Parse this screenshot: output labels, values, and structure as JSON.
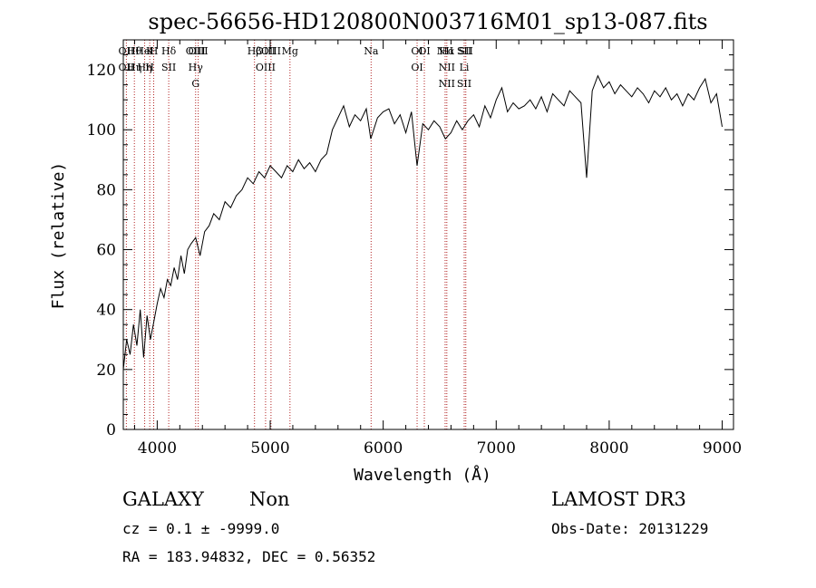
{
  "chart_data": {
    "type": "line",
    "title": "spec-56656-HD120800N003716M01_sp13-087.fits",
    "xlabel": "Wavelength (Å)",
    "ylabel": "Flux (relative)",
    "xlim": [
      3700,
      9100
    ],
    "ylim": [
      0,
      130
    ],
    "xticks": [
      4000,
      5000,
      6000,
      7000,
      8000,
      9000
    ],
    "yticks": [
      0,
      20,
      40,
      60,
      80,
      100,
      120
    ],
    "grid": false,
    "line_color": "#000000",
    "marker_color": "#b22222",
    "series": [
      {
        "x": [
          3700,
          3730,
          3760,
          3790,
          3820,
          3850,
          3880,
          3910,
          3940,
          3970,
          4000,
          4030,
          4060,
          4090,
          4120,
          4150,
          4180,
          4210,
          4240,
          4270,
          4300,
          4340,
          4380,
          4420,
          4460,
          4500,
          4550,
          4600,
          4650,
          4700,
          4750,
          4800,
          4850,
          4900,
          4950,
          5000,
          5050,
          5100,
          5150,
          5200,
          5250,
          5300,
          5350,
          5400,
          5450,
          5500,
          5550,
          5600,
          5650,
          5700,
          5750,
          5800,
          5850,
          5890,
          5950,
          6000,
          6050,
          6100,
          6150,
          6200,
          6250,
          6300,
          6350,
          6400,
          6450,
          6500,
          6550,
          6600,
          6650,
          6700,
          6750,
          6800,
          6850,
          6900,
          6950,
          7000,
          7050,
          7100,
          7150,
          7200,
          7250,
          7300,
          7350,
          7400,
          7450,
          7500,
          7550,
          7600,
          7650,
          7700,
          7750,
          7800,
          7850,
          7900,
          7950,
          8000,
          8050,
          8100,
          8150,
          8200,
          8250,
          8300,
          8350,
          8400,
          8450,
          8500,
          8550,
          8600,
          8650,
          8700,
          8750,
          8800,
          8850,
          8900,
          8950,
          9000
        ],
        "values": [
          20,
          30,
          25,
          35,
          28,
          40,
          24,
          38,
          30,
          36,
          42,
          47,
          44,
          50,
          48,
          54,
          50,
          58,
          52,
          60,
          62,
          64,
          58,
          66,
          68,
          72,
          70,
          76,
          74,
          78,
          80,
          84,
          82,
          86,
          84,
          88,
          86,
          84,
          88,
          86,
          90,
          87,
          89,
          86,
          90,
          92,
          100,
          104,
          108,
          101,
          105,
          103,
          107,
          97,
          104,
          106,
          107,
          102,
          105,
          99,
          106,
          88,
          102,
          100,
          103,
          101,
          97,
          99,
          103,
          100,
          103,
          105,
          101,
          108,
          104,
          110,
          114,
          106,
          109,
          107,
          108,
          110,
          107,
          111,
          106,
          112,
          110,
          108,
          113,
          111,
          109,
          84,
          113,
          118,
          114,
          116,
          112,
          115,
          113,
          111,
          114,
          112,
          109,
          113,
          111,
          114,
          110,
          112,
          108,
          112,
          110,
          114,
          117,
          109,
          112,
          101
        ]
      }
    ],
    "lines": [
      {
        "labels": [
          "OII",
          "OII"
        ],
        "x": 3727
      },
      {
        "labels": [
          "Hθ",
          "Hη"
        ],
        "x": 3798
      },
      {
        "labels": [
          "HeI",
          "Hη"
        ],
        "x": 3889
      },
      {
        "labels": [
          "K",
          "H"
        ],
        "x": 3934
      },
      {
        "labels": [
          "H",
          ""
        ],
        "x": 3969
      },
      {
        "labels": [
          "Hδ",
          "SII"
        ],
        "x": 4102
      },
      {
        "labels": [
          "OIII",
          "Hγ",
          "G"
        ],
        "x": 4340
      },
      {
        "labels": [
          "OIII",
          ""
        ],
        "x": 4363
      },
      {
        "labels": [
          "Hβ",
          ""
        ],
        "x": 4861
      },
      {
        "labels": [
          "OIII",
          "OIII"
        ],
        "x": 4959
      },
      {
        "labels": [
          "OIII",
          ""
        ],
        "x": 5007
      },
      {
        "labels": [
          "Mg",
          ""
        ],
        "x": 5175
      },
      {
        "labels": [
          "Na",
          ""
        ],
        "x": 5893
      },
      {
        "labels": [
          "OI",
          "OI"
        ],
        "x": 6300
      },
      {
        "labels": [
          "OI",
          ""
        ],
        "x": 6364
      },
      {
        "labels": [
          "Hα",
          "NII",
          "NII"
        ],
        "x": 6563
      },
      {
        "labels": [
          "NII",
          ""
        ],
        "x": 6548
      },
      {
        "labels": [
          "SII",
          "Li",
          "SII"
        ],
        "x": 6717
      },
      {
        "labels": [
          "SII",
          ""
        ],
        "x": 6731
      }
    ]
  },
  "footer": {
    "class_label": "GALAXY",
    "subclass": "Non",
    "cz_text": "cz = 0.1 ± -9999.0",
    "radec_text": "RA = 183.94832, DEC =    0.56352",
    "survey": "LAMOST DR3",
    "obs_date": "Obs-Date: 20131229"
  }
}
